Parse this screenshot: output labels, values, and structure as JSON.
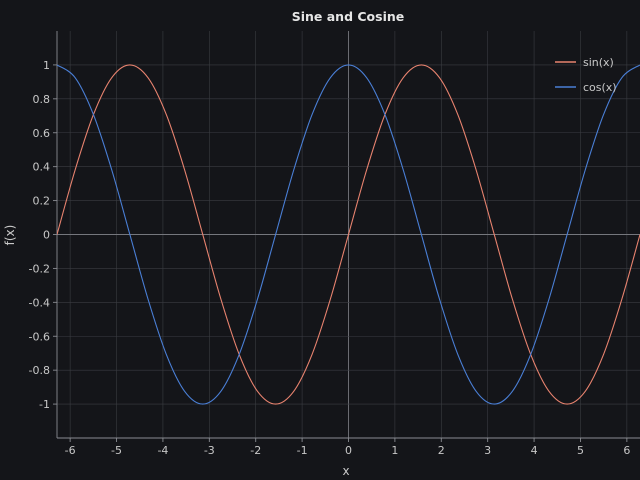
{
  "chart_data": {
    "type": "line",
    "title": "Sine and Cosine",
    "xlabel": "x",
    "ylabel": "f(x)",
    "xlim": [
      -6.283185307,
      6.283185307
    ],
    "ylim": [
      -1.2,
      1.2
    ],
    "x_ticks": [
      -6,
      -5,
      -4,
      -3,
      -2,
      -1,
      0,
      1,
      2,
      3,
      4,
      5,
      6
    ],
    "y_ticks": [
      -1,
      -0.8,
      -0.6,
      -0.4,
      -0.2,
      0,
      0.2,
      0.4,
      0.6,
      0.8,
      1
    ],
    "grid": true,
    "legend_position": "top-right",
    "x": [
      -6.2832,
      -5.8905,
      -5.4978,
      -5.1051,
      -4.7124,
      -4.3197,
      -3.927,
      -3.5343,
      -3.1416,
      -2.7489,
      -2.3562,
      -1.9635,
      -1.5708,
      -1.1781,
      -0.7854,
      -0.3927,
      0,
      0.3927,
      0.7854,
      1.1781,
      1.5708,
      1.9635,
      2.3562,
      2.7489,
      3.1416,
      3.5343,
      3.927,
      4.3197,
      4.7124,
      5.1051,
      5.4978,
      5.8905,
      6.2832
    ],
    "series": [
      {
        "name": "sin(x)",
        "color": "#e8836f",
        "values": [
          0,
          0.3827,
          0.7071,
          0.9239,
          1,
          0.9239,
          0.7071,
          0.3827,
          0,
          -0.3827,
          -0.7071,
          -0.9239,
          -1,
          -0.9239,
          -0.7071,
          -0.3827,
          0,
          0.3827,
          0.7071,
          0.9239,
          1,
          0.9239,
          0.7071,
          0.3827,
          0,
          -0.3827,
          -0.7071,
          -0.9239,
          -1,
          -0.9239,
          -0.7071,
          -0.3827,
          0
        ]
      },
      {
        "name": "cos(x)",
        "color": "#4a7fd6",
        "values": [
          1,
          0.9239,
          0.7071,
          0.3827,
          0,
          -0.3827,
          -0.7071,
          -0.9239,
          -1,
          -0.9239,
          -0.7071,
          -0.3827,
          0,
          0.3827,
          0.7071,
          0.9239,
          1,
          0.9239,
          0.7071,
          0.3827,
          0,
          -0.3827,
          -0.7071,
          -0.9239,
          -1,
          -0.9239,
          -0.7071,
          -0.3827,
          0,
          0.3827,
          0.7071,
          0.9239,
          1
        ]
      }
    ]
  }
}
